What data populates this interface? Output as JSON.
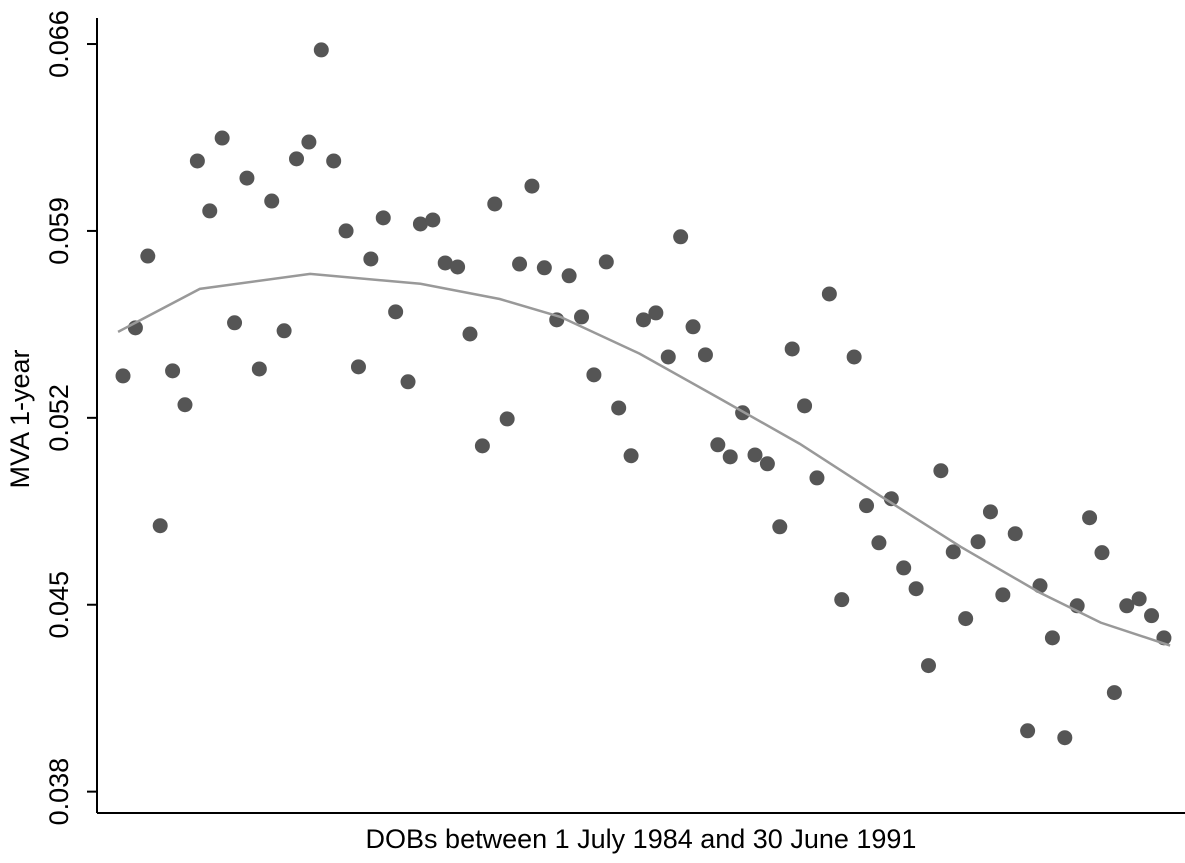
{
  "chart_data": {
    "type": "scatter",
    "x_label": "DOBs between 1 July 1984 and 30 June 1991",
    "y_label": "MVA 1-year",
    "x": [
      1,
      2,
      3,
      4,
      5,
      6,
      7,
      8,
      9,
      10,
      11,
      12,
      13,
      14,
      15,
      16,
      17,
      18,
      19,
      20,
      21,
      22,
      23,
      24,
      25,
      26,
      27,
      28,
      29,
      30,
      31,
      32,
      33,
      34,
      35,
      36,
      37,
      38,
      39,
      40,
      41,
      42,
      43,
      44,
      45,
      46,
      47,
      48,
      49,
      50,
      51,
      52,
      53,
      54,
      55,
      56,
      57,
      58,
      59,
      60,
      61,
      62,
      63,
      64,
      65,
      66,
      67,
      68,
      69,
      70,
      71,
      72,
      73,
      74,
      75,
      76,
      77,
      78,
      79,
      80,
      81,
      82,
      83,
      84,
      85
    ],
    "values": [
      0.05357,
      0.05537,
      0.05806,
      0.04796,
      0.05376,
      0.05249,
      0.06162,
      0.05975,
      0.06248,
      0.05556,
      0.06098,
      0.05383,
      0.06012,
      0.05526,
      0.0617,
      0.06233,
      0.06578,
      0.06162,
      0.059,
      0.05391,
      0.05795,
      0.05949,
      0.05597,
      0.05335,
      0.05926,
      0.05941,
      0.0578,
      0.05765,
      0.05514,
      0.05095,
      0.06001,
      0.05196,
      0.05776,
      0.06068,
      0.05762,
      0.05567,
      0.05732,
      0.05578,
      0.05361,
      0.05784,
      0.05237,
      0.05058,
      0.05567,
      0.05593,
      0.05428,
      0.05878,
      0.05541,
      0.05436,
      0.05099,
      0.05054,
      0.05219,
      0.05061,
      0.05028,
      0.04792,
      0.05458,
      0.05245,
      0.04975,
      0.05664,
      0.04519,
      0.05428,
      0.04871,
      0.04732,
      0.04897,
      0.04638,
      0.0456,
      0.04272,
      0.05002,
      0.04698,
      0.04448,
      0.04736,
      0.04848,
      0.04537,
      0.04766,
      0.04028,
      0.04571,
      0.04376,
      0.04002,
      0.04496,
      0.04826,
      0.04695,
      0.04171,
      0.04496,
      0.04522,
      0.04459,
      0.04376
    ],
    "color": "#555555",
    "fit": {
      "x": [
        0.6,
        7.2,
        16.1,
        25,
        31.4,
        36.3,
        42.7,
        49.2,
        55.6,
        62.1,
        68.6,
        75,
        79.9,
        85.5
      ],
      "values": [
        0.05522,
        0.05683,
        0.05739,
        0.05702,
        0.05645,
        0.05578,
        0.0544,
        0.05271,
        0.05103,
        0.04908,
        0.04717,
        0.04545,
        0.04433,
        0.04347
      ],
      "color": "#999999"
    },
    "xlim": [
      -1.1,
      86.7
    ],
    "ylim": [
      0.0372,
      0.0669
    ],
    "yticks": [
      0.038,
      0.045,
      0.052,
      0.059,
      0.066
    ]
  }
}
